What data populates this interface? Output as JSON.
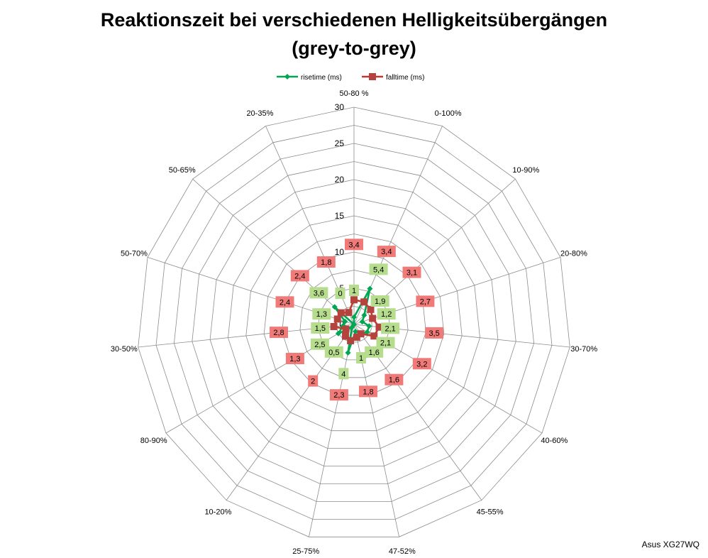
{
  "chart_data": {
    "type": "radar",
    "title_line1": "Reaktionszeit bei verschiedenen Helligkeitsübergängen",
    "title_line2": "(grey-to-grey)",
    "categories": [
      "50-80 %",
      "0-100%",
      "10-90%",
      "20-80%",
      "30-70%",
      "40-60%",
      "45-55%",
      "47-52%",
      "25-75%",
      "10-20%",
      "80-90%",
      "30-50%",
      "50-70%",
      "50-65%",
      "20-35%"
    ],
    "rlim": [
      0,
      30
    ],
    "ticks": [
      "0",
      "5",
      "10",
      "15",
      "20",
      "25",
      "30"
    ],
    "grid": true,
    "legend_position": "top",
    "series": [
      {
        "name": "risetime (ms)",
        "color": "#00a651",
        "label_bg": "#b6dd8e",
        "values": [
          1,
          5.4,
          1.9,
          1.2,
          2.1,
          2.1,
          1.6,
          1,
          4,
          0.5,
          2.5,
          1.5,
          1.3,
          3.6,
          0
        ],
        "labels": [
          "1",
          "5,4",
          "1,9",
          "1,2",
          "2,1",
          "2,1",
          "1,6",
          "1",
          "4",
          "0,5",
          "2,5",
          "1,5",
          "1,3",
          "3,6",
          "0"
        ]
      },
      {
        "name": "falltime (ms)",
        "color": "#c0392b",
        "label_bg": "#f07a78",
        "values": [
          3.4,
          3.4,
          3.1,
          2.7,
          3.5,
          3.2,
          1.6,
          1.8,
          2.3,
          2,
          1.3,
          2.8,
          2.4,
          2.4,
          1.8
        ],
        "labels": [
          "3,4",
          "3,4",
          "3,1",
          "2,7",
          "3,5",
          "3,2",
          "1,6",
          "1,8",
          "2,3",
          "2",
          "1,3",
          "2,8",
          "2,4",
          "2,4",
          "1,8"
        ]
      }
    ]
  },
  "footer": "Asus XG27WQ"
}
